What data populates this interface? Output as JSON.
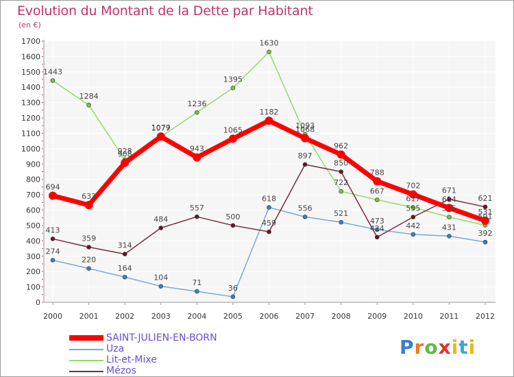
{
  "title": "Evolution du Montant de la Dette par Habitant",
  "subtitle": "(en €)",
  "logo": {
    "text": "Proxiti",
    "letters": [
      "P",
      "r",
      "o",
      "x",
      "i",
      "t",
      "i"
    ]
  },
  "chart_data": {
    "type": "line",
    "title": "Evolution du Montant de la Dette par Habitant",
    "ylabel": "(en €)",
    "ylim": [
      0,
      1700
    ],
    "yticks": [
      0,
      100,
      200,
      300,
      400,
      500,
      600,
      700,
      800,
      900,
      1000,
      1100,
      1200,
      1300,
      1400,
      1500,
      1600,
      1700
    ],
    "categories": [
      "2000",
      "2001",
      "2002",
      "2003",
      "2004",
      "2005",
      "2006",
      "2007",
      "2008",
      "2009",
      "2010",
      "2011",
      "2012"
    ],
    "grid": true,
    "legend_position": "bottom-left",
    "series": [
      {
        "name": "SAINT-JULIEN-EN-BORN",
        "color": "#ff0000",
        "marker_color": "#ff0000",
        "values": [
          694,
          633,
          908,
          1079,
          943,
          1065,
          1182,
          1068,
          962,
          788,
          702,
          614,
          531
        ]
      },
      {
        "name": "Uza",
        "color": "#78a8d8",
        "marker_color": "#3d7fc1",
        "values": [
          274,
          220,
          164,
          104,
          71,
          36,
          618,
          556,
          521,
          473,
          442,
          431,
          392
        ]
      },
      {
        "name": "Lit-et-Mixe",
        "color": "#8fdc6a",
        "marker_color": "#74c440",
        "values": [
          1443,
          1284,
          928,
          1077,
          1236,
          1395,
          1630,
          1093,
          722,
          667,
          617,
          555,
          501
        ]
      },
      {
        "name": "Mézos",
        "color": "#7a2a3a",
        "marker_color": "#6a1428",
        "values": [
          413,
          359,
          314,
          484,
          557,
          500,
          459,
          897,
          850,
          424,
          555,
          671,
          621
        ]
      }
    ],
    "data_labels": [
      [
        "694",
        "633",
        "908",
        "1079",
        "943",
        "1065",
        "1182",
        "1068",
        "962",
        "788",
        "702",
        "614",
        "531"
      ],
      [
        "274",
        "220",
        "164",
        "104",
        "71",
        "36",
        "618",
        "556",
        "521",
        "473",
        "442",
        "431",
        "392"
      ],
      [
        "1443",
        "1284",
        "928",
        "1077",
        "1236",
        "1395",
        "1630",
        "1093",
        "722",
        "667",
        "617",
        "555",
        "501"
      ],
      [
        "413",
        "359",
        "314",
        "484",
        "557",
        "500",
        "459",
        "897",
        "850",
        "424",
        "555",
        "671",
        "621"
      ]
    ]
  }
}
